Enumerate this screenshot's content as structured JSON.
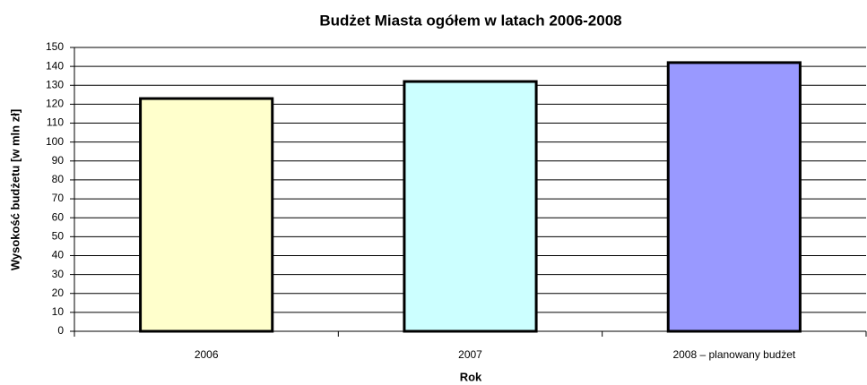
{
  "chart_data": {
    "type": "bar",
    "title": "Budżet Miasta ogółem w latach 2006-2008",
    "xlabel": "Rok",
    "ylabel": "Wysokość budżetu [w mln zł]",
    "categories": [
      "2006",
      "2007",
      "2008 – planowany budżet"
    ],
    "values": [
      123,
      132,
      142
    ],
    "colors": [
      "#ffffcc",
      "#ccffff",
      "#9999ff"
    ],
    "ylim": [
      0,
      150
    ],
    "yticks": [
      0,
      10,
      20,
      30,
      40,
      50,
      60,
      70,
      80,
      90,
      100,
      110,
      120,
      130,
      140,
      150
    ],
    "grid": true
  }
}
